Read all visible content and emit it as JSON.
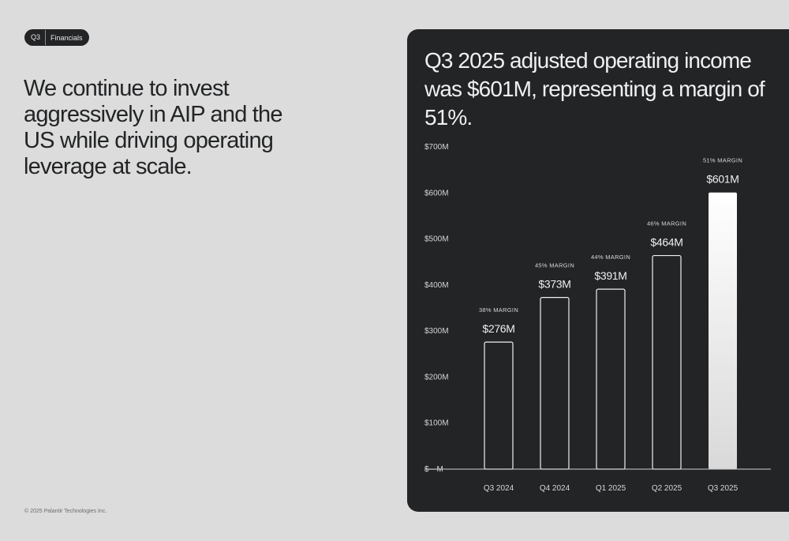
{
  "tag": {
    "quarter": "Q3",
    "section": "Financials"
  },
  "headline": "We continue to invest aggressively in AIP and the US while driving operating leverage at scale.",
  "footer": "© 2025 Palantir Technologies Inc.",
  "panel": {
    "title": "Q3 2025 adjusted operating income was $601M, representing a margin of 51%."
  },
  "colors": {
    "page_bg": "#dcdcdc",
    "panel_bg": "#222426",
    "bar_stroke": "#f0f0f0",
    "highlight_gradient_top": "#ffffff",
    "highlight_gradient_bottom": "#d9d9d9"
  },
  "chart_data": {
    "type": "bar",
    "categories": [
      "Q3 2024",
      "Q4 2024",
      "Q1 2025",
      "Q2 2025",
      "Q3 2025"
    ],
    "values": [
      276,
      373,
      391,
      464,
      601
    ],
    "value_labels": [
      "$276M",
      "$373M",
      "$391M",
      "$464M",
      "$601M"
    ],
    "margin_labels": [
      "38% MARGIN",
      "45% MARGIN",
      "44% MARGIN",
      "46% MARGIN",
      "51% MARGIN"
    ],
    "highlighted_index": 4,
    "yticks": [
      0,
      100,
      200,
      300,
      400,
      500,
      600,
      700
    ],
    "ytick_labels": [
      "$—M",
      "$100M",
      "$200M",
      "$300M",
      "$400M",
      "$500M",
      "$600M",
      "$700M"
    ],
    "ylim": [
      0,
      700
    ],
    "grid": false,
    "unit": "$M"
  }
}
